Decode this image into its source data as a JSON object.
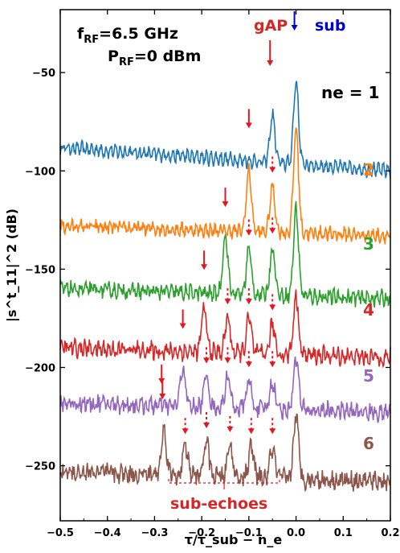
{
  "chart_data": {
    "type": "line",
    "xlabel": "τ/τ_sub − n_e",
    "ylabel": "|s^t_11|^2 (dB)",
    "xlim": [
      -0.5,
      0.2
    ],
    "ylim": [
      -278,
      -18
    ],
    "xticks": [
      -0.5,
      -0.4,
      -0.3,
      -0.2,
      -0.1,
      0.0,
      0.1,
      0.2
    ],
    "xtick_labels": [
      "−0.5",
      "−0.4",
      "−0.3",
      "−0.2",
      "−0.1",
      "0.0",
      "0.1",
      "0.2"
    ],
    "yticks": [
      -50,
      -100,
      -150,
      -200,
      -250
    ],
    "ytick_labels": [
      "−50",
      "−100",
      "−150",
      "−200",
      "−250"
    ],
    "grid": false,
    "annotations": {
      "frf": "fRF=6.5 GHz",
      "prf": "PRF=0 dBm",
      "gap_label": "gAP",
      "sub_label": "sub",
      "sub_echoes_label": "sub-echoes",
      "ne_prefix": "ne = 1"
    },
    "series": [
      {
        "name": "1",
        "label": "ne = 1",
        "color": "#1f77b4",
        "baseline": -88,
        "slope": -12,
        "noise": 2.0,
        "osc": 2.5,
        "peaks": [
          {
            "x": -0.05,
            "y": -64
          },
          {
            "x": 0.0,
            "y": -46
          }
        ],
        "dashed_arrows": [],
        "solid_arrow": -0.1
      },
      {
        "name": "2",
        "label": "2",
        "color": "#ff7f0e",
        "baseline": -128,
        "slope": -5,
        "noise": 2.5,
        "osc": 2.0,
        "peaks": [
          {
            "x": -0.1,
            "y": -97
          },
          {
            "x": -0.05,
            "y": -105
          },
          {
            "x": 0.0,
            "y": -75
          }
        ],
        "dashed_arrows": [
          -0.05
        ],
        "solid_arrow": -0.15
      },
      {
        "name": "3",
        "label": "3",
        "color": "#2ca02c",
        "baseline": -160,
        "slope": -5,
        "noise": 3.0,
        "osc": 2.0,
        "peaks": [
          {
            "x": -0.15,
            "y": -130
          },
          {
            "x": -0.1,
            "y": -137
          },
          {
            "x": -0.05,
            "y": -136
          },
          {
            "x": 0.0,
            "y": -116
          }
        ],
        "dashed_arrows": [
          -0.1,
          -0.05
        ],
        "solid_arrow": -0.195
      },
      {
        "name": "4",
        "label": "4",
        "color": "#d62728",
        "baseline": -190,
        "slope": -5,
        "noise": 3.5,
        "osc": 2.0,
        "peaks": [
          {
            "x": -0.195,
            "y": -168
          },
          {
            "x": -0.145,
            "y": -172
          },
          {
            "x": -0.1,
            "y": -172
          },
          {
            "x": -0.05,
            "y": -175
          },
          {
            "x": 0.0,
            "y": -160
          }
        ],
        "dashed_arrows": [
          -0.145,
          -0.1,
          -0.05
        ],
        "solid_arrow": -0.24
      },
      {
        "name": "5",
        "label": "5",
        "color": "#9467bd",
        "baseline": -218,
        "slope": -5,
        "noise": 3.5,
        "osc": 2.0,
        "peaks": [
          {
            "x": -0.24,
            "y": -198
          },
          {
            "x": -0.19,
            "y": -202
          },
          {
            "x": -0.145,
            "y": -202
          },
          {
            "x": -0.1,
            "y": -204
          },
          {
            "x": -0.05,
            "y": -204
          },
          {
            "x": 0.0,
            "y": -191
          }
        ],
        "dashed_arrows": [
          -0.19,
          -0.145,
          -0.1,
          -0.05
        ],
        "solid_arrow": -0.285
      },
      {
        "name": "6",
        "label": "6",
        "color": "#8c564b",
        "baseline": -253,
        "slope": -5,
        "noise": 4.0,
        "osc": 2.0,
        "peaks": [
          {
            "x": -0.28,
            "y": -230
          },
          {
            "x": -0.235,
            "y": -238
          },
          {
            "x": -0.19,
            "y": -235
          },
          {
            "x": -0.14,
            "y": -237
          },
          {
            "x": -0.095,
            "y": -238
          },
          {
            "x": -0.05,
            "y": -238
          },
          {
            "x": 0.0,
            "y": -221
          }
        ],
        "dashed_arrows": [
          -0.235,
          -0.19,
          -0.14,
          -0.095,
          -0.05
        ],
        "solid_arrow": null
      }
    ]
  }
}
